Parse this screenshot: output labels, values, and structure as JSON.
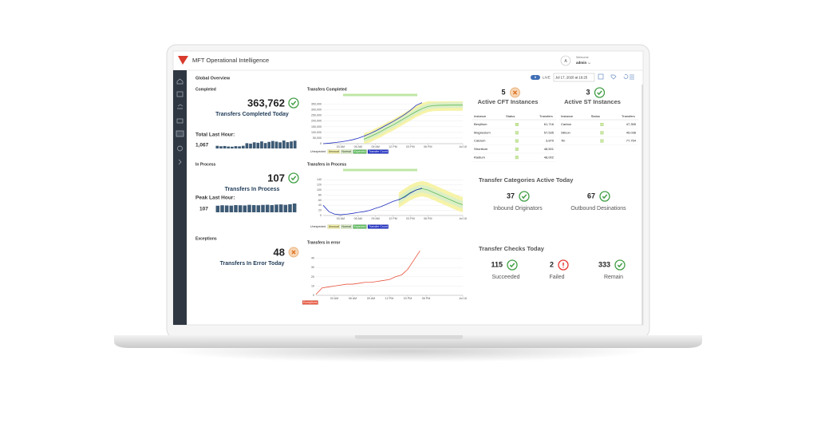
{
  "header": {
    "title": "MFT Operational Intelligence",
    "avatar": "A",
    "welcome": "Welcome",
    "user": "admin"
  },
  "toolbar": {
    "page_title": "Global Overview",
    "mode": "LIVE",
    "datetime": "Jul 17, 2020 at 16:25"
  },
  "kpis": [
    {
      "section": "Completed",
      "value": "363,762",
      "status": "ok",
      "label": "Transfers Completed Today",
      "sub_label": "Total Last Hour:",
      "sub_value": "1,067"
    },
    {
      "section": "In Process",
      "value": "107",
      "status": "ok",
      "label": "Transfers In Process",
      "sub_label": "Peak Last Hour:",
      "sub_value": "107"
    },
    {
      "section": "Exceptions",
      "value": "48",
      "status": "warning",
      "label": "Transfers In Error Today"
    }
  ],
  "instances": [
    {
      "count": "5",
      "status": "warning",
      "title": "Active CFT Instances",
      "columns": [
        "Instance",
        "Status",
        "Transfers"
      ],
      "rows": [
        [
          "Beryllium",
          "61,716"
        ],
        [
          "Magnesium",
          "57,535"
        ],
        [
          "Calcium",
          "3,879"
        ],
        [
          "Strontium",
          "48,501"
        ],
        [
          "Radium",
          "48,002"
        ]
      ]
    },
    {
      "count": "3",
      "status": "ok",
      "title": "Active ST Instances",
      "columns": [
        "Instance",
        "Status",
        "Transfers"
      ],
      "rows": [
        [
          "Carbon",
          "47,355"
        ],
        [
          "Silicon",
          "49,038"
        ],
        [
          "Tin",
          "77,754"
        ]
      ]
    }
  ],
  "categories": {
    "title": "Transfer Categories Active Today",
    "items": [
      {
        "value": "37",
        "status": "ok",
        "label": "Inbound Originators"
      },
      {
        "value": "67",
        "status": "ok",
        "label": "Outbound Desinations"
      }
    ]
  },
  "checks": {
    "title": "Transfer Checks Today",
    "items": [
      {
        "value": "115",
        "status": "ok",
        "label": "Succeeded"
      },
      {
        "value": "2",
        "status": "error",
        "label": "Failed"
      },
      {
        "value": "333",
        "status": "ok",
        "label": "Remain"
      }
    ]
  },
  "chart_data": [
    {
      "type": "line",
      "title": "Transfers Completed",
      "x": [
        0,
        1,
        2,
        3,
        4,
        5,
        6,
        7,
        8,
        9,
        10,
        11,
        12,
        13,
        14,
        15,
        16,
        17,
        18,
        19,
        20,
        21,
        22,
        23,
        24
      ],
      "xlim": [
        0,
        24
      ],
      "xticks": [
        {
          "value": 3,
          "label": "03 AM"
        },
        {
          "value": 6,
          "label": "06 AM"
        },
        {
          "value": 9,
          "label": "09 AM"
        },
        {
          "value": 12,
          "label": "12 PM"
        },
        {
          "value": 15,
          "label": "03 PM"
        },
        {
          "value": 18,
          "label": "06 PM"
        },
        {
          "value": 24,
          "label": "Jul 18"
        }
      ],
      "ylim": [
        0,
        375000
      ],
      "yticks": [
        0,
        {
          "value": 50000,
          "label": "50,000"
        },
        {
          "value": 100000,
          "label": "100,000"
        },
        {
          "value": 150000,
          "label": "150,000"
        },
        {
          "value": 200000,
          "label": "200,000"
        },
        {
          "value": 250000,
          "label": "250,000"
        },
        {
          "value": 300000,
          "label": "300,000"
        },
        {
          "value": 350000,
          "label": "350,000"
        }
      ],
      "grid": true,
      "series": [
        {
          "name": "Unexpected",
          "color": "#ffffff"
        },
        {
          "name": "Unusual",
          "color": "#f6f3a9",
          "high": [
            null,
            null,
            null,
            null,
            null,
            null,
            null,
            90000,
            110000,
            135000,
            160000,
            190000,
            215000,
            245000,
            275000,
            305000,
            335000,
            360000,
            375000,
            375000,
            375000,
            375000,
            375000,
            375000,
            375000
          ],
          "low": [
            null,
            null,
            null,
            null,
            null,
            null,
            null,
            0,
            10000,
            35000,
            60000,
            90000,
            115000,
            145000,
            175000,
            205000,
            235000,
            260000,
            280000,
            288000,
            290000,
            291000,
            292000,
            292000,
            292000
          ]
        },
        {
          "name": "Normal",
          "color": "#dcefc6",
          "high": [
            null,
            null,
            null,
            null,
            null,
            null,
            null,
            65000,
            85000,
            110000,
            135000,
            165000,
            190000,
            220000,
            250000,
            280000,
            310000,
            335000,
            355000,
            363000,
            365000,
            366000,
            367000,
            367000,
            367000
          ],
          "low": [
            null,
            null,
            null,
            null,
            null,
            null,
            null,
            15000,
            35000,
            60000,
            85000,
            115000,
            140000,
            170000,
            200000,
            230000,
            260000,
            285000,
            305000,
            313000,
            315000,
            316000,
            317000,
            317000,
            317000
          ]
        },
        {
          "name": "Expected",
          "color": "#5cb85c",
          "values": [
            null,
            null,
            null,
            null,
            null,
            null,
            null,
            40000,
            60000,
            85000,
            110000,
            140000,
            165000,
            195000,
            225000,
            255000,
            285000,
            310000,
            330000,
            338000,
            340000,
            341000,
            342000,
            342000,
            342000
          ]
        },
        {
          "name": "Transfer Count",
          "color": "#1f2ec0",
          "values": [
            0,
            4000,
            10000,
            16000,
            24000,
            34000,
            48000,
            66000,
            88000,
            112000,
            140000,
            168000,
            196000,
            226000,
            258000,
            296000,
            340000,
            363762,
            null,
            null,
            null,
            null,
            null,
            null,
            null
          ]
        }
      ]
    },
    {
      "type": "line",
      "title": "Transfers in Process",
      "x": [
        0,
        1,
        2,
        3,
        4,
        5,
        6,
        7,
        8,
        9,
        10,
        11,
        12,
        13,
        14,
        15,
        16,
        17,
        18,
        19,
        20,
        21,
        22,
        23,
        24
      ],
      "xlim": [
        0,
        24
      ],
      "xticks": [
        {
          "value": 3,
          "label": "03 AM"
        },
        {
          "value": 6,
          "label": "06 AM"
        },
        {
          "value": 9,
          "label": "09 AM"
        },
        {
          "value": 12,
          "label": "12 PM"
        },
        {
          "value": 15,
          "label": "03 PM"
        },
        {
          "value": 18,
          "label": "06 PM"
        },
        {
          "value": 24,
          "label": "Jul 18"
        }
      ],
      "ylim": [
        0,
        150
      ],
      "yticks": [
        0,
        20,
        40,
        60,
        80,
        100,
        120,
        140
      ],
      "grid": true,
      "series": [
        {
          "name": "Unexpected",
          "color": "#ffffff"
        },
        {
          "name": "Unusual",
          "color": "#f6f3a9",
          "high": [
            null,
            null,
            null,
            null,
            null,
            null,
            null,
            null,
            null,
            null,
            null,
            null,
            null,
            90,
            105,
            120,
            130,
            135,
            130,
            120,
            110,
            100,
            90,
            80,
            72
          ],
          "low": [
            null,
            null,
            null,
            null,
            null,
            null,
            null,
            null,
            null,
            null,
            null,
            null,
            null,
            30,
            45,
            60,
            70,
            75,
            70,
            60,
            50,
            40,
            30,
            20,
            12
          ]
        },
        {
          "name": "Normal",
          "color": "#dcefc6",
          "high": [
            null,
            null,
            null,
            null,
            null,
            null,
            null,
            null,
            null,
            null,
            null,
            null,
            null,
            75,
            90,
            105,
            115,
            120,
            115,
            105,
            95,
            85,
            75,
            65,
            57
          ],
          "low": [
            null,
            null,
            null,
            null,
            null,
            null,
            null,
            null,
            null,
            null,
            null,
            null,
            null,
            45,
            60,
            75,
            85,
            90,
            85,
            75,
            65,
            55,
            45,
            35,
            27
          ]
        },
        {
          "name": "Expected",
          "color": "#5cb85c",
          "values": [
            null,
            null,
            null,
            null,
            null,
            null,
            null,
            null,
            null,
            null,
            null,
            null,
            null,
            60,
            75,
            90,
            100,
            105,
            100,
            90,
            80,
            70,
            60,
            50,
            42
          ]
        },
        {
          "name": "Transfer Count",
          "color": "#1f2ec0",
          "values": [
            40,
            15,
            5,
            3,
            5,
            8,
            12,
            15,
            20,
            28,
            35,
            45,
            55,
            62,
            72,
            88,
            100,
            107,
            null,
            null,
            null,
            null,
            null,
            null,
            null
          ]
        }
      ]
    },
    {
      "type": "line",
      "title": "Transfers in error",
      "x": [
        0,
        1,
        2,
        3,
        4,
        5,
        6,
        7,
        8,
        9,
        10,
        11,
        12,
        13,
        14,
        15,
        16,
        17
      ],
      "xlim": [
        0,
        24
      ],
      "xticks": [
        {
          "value": 3,
          "label": "03 AM"
        },
        {
          "value": 6,
          "label": "06 AM"
        },
        {
          "value": 9,
          "label": "09 AM"
        },
        {
          "value": 12,
          "label": "12 PM"
        },
        {
          "value": 15,
          "label": "03 PM"
        },
        {
          "value": 18,
          "label": "06 PM"
        },
        {
          "value": 24,
          "label": "Jul 18"
        }
      ],
      "ylim": [
        0,
        50
      ],
      "yticks": [
        0,
        10,
        20,
        30,
        40
      ],
      "grid": true,
      "series": [
        {
          "name": "Exceptions",
          "color": "#e8523a",
          "values": [
            1,
            8,
            9,
            10,
            11,
            12,
            12,
            13,
            14,
            14,
            15,
            16,
            17,
            20,
            22,
            28,
            38,
            48
          ]
        }
      ]
    },
    {
      "type": "bar",
      "color": "#3d5a74",
      "ylim": [
        0,
        100
      ],
      "values": [
        30,
        25,
        28,
        22,
        20,
        26,
        24,
        30,
        60,
        55,
        70,
        65,
        80,
        62,
        75,
        85,
        78,
        70,
        90,
        72,
        80,
        88
      ]
    },
    {
      "type": "bar",
      "color": "#3d5a74",
      "ylim": [
        0,
        100
      ],
      "values": [
        75,
        80,
        78,
        76,
        82,
        80,
        78,
        85,
        82,
        80,
        84,
        86,
        82,
        88,
        90,
        85,
        92,
        100
      ]
    }
  ]
}
